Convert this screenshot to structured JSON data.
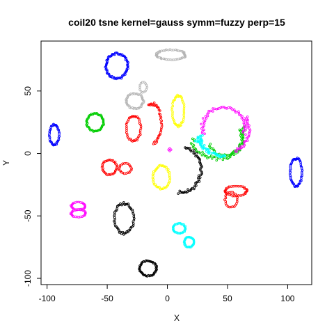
{
  "chart_data": {
    "type": "scatter",
    "title": "coil20 tsne kernel=gauss symm=fuzzy perp=15",
    "xlabel": "X",
    "ylabel": "Y",
    "xlim": [
      -105,
      120
    ],
    "ylim": [
      -105,
      90
    ],
    "xticks": [
      -100,
      -50,
      0,
      50,
      100
    ],
    "yticks": [
      -100,
      -50,
      0,
      50
    ],
    "grid": false,
    "legend": "none",
    "marker": "open-circle",
    "series": [
      {
        "color": "#0000ff",
        "clusters": [
          {
            "shape": "ellipse",
            "cx": -42,
            "cy": 70,
            "rx": 9,
            "ry": 10,
            "n": 70
          },
          {
            "shape": "ellipse",
            "cx": -94,
            "cy": 15,
            "rx": 4,
            "ry": 8,
            "n": 40
          },
          {
            "shape": "ellipse",
            "cx": 107,
            "cy": -15,
            "rx": 5,
            "ry": 11,
            "n": 50
          }
        ]
      },
      {
        "color": "#b4b4b4",
        "clusters": [
          {
            "shape": "ellipse",
            "cx": 3,
            "cy": 79,
            "rx": 12,
            "ry": 4,
            "n": 50
          },
          {
            "shape": "ellipse",
            "cx": -27,
            "cy": 42,
            "rx": 7,
            "ry": 6,
            "n": 40
          },
          {
            "shape": "ellipse",
            "cx": -20,
            "cy": 53,
            "rx": 3,
            "ry": 4,
            "n": 14
          }
        ]
      },
      {
        "color": "#00cd00",
        "clusters": [
          {
            "shape": "ellipse",
            "cx": -60,
            "cy": 25,
            "rx": 7,
            "ry": 7,
            "n": 50
          },
          {
            "shape": "arc",
            "cx": 42,
            "cy": 15,
            "rx": 22,
            "ry": 19,
            "a0": -170,
            "a1": 20,
            "n": 60
          },
          {
            "shape": "arc",
            "cx": 48,
            "cy": 12,
            "rx": 14,
            "ry": 14,
            "a0": -160,
            "a1": 30,
            "n": 40
          }
        ]
      },
      {
        "color": "#ff0000",
        "clusters": [
          {
            "shape": "ellipse",
            "cx": -28,
            "cy": 20,
            "rx": 6,
            "ry": 10,
            "n": 40
          },
          {
            "shape": "arc",
            "cx": -13,
            "cy": 24,
            "rx": 8,
            "ry": 16,
            "a0": -80,
            "a1": 110,
            "n": 40
          },
          {
            "shape": "ellipse",
            "cx": -48,
            "cy": -11,
            "rx": 6,
            "ry": 6,
            "n": 34
          },
          {
            "shape": "ellipse",
            "cx": -35,
            "cy": -12,
            "rx": 5,
            "ry": 4,
            "n": 22
          },
          {
            "shape": "ellipse",
            "cx": 57,
            "cy": -30,
            "rx": 9,
            "ry": 4,
            "n": 34
          },
          {
            "shape": "ellipse",
            "cx": 53,
            "cy": -37,
            "rx": 5,
            "ry": 6,
            "n": 24
          }
        ]
      },
      {
        "color": "#ffff00",
        "clusters": [
          {
            "shape": "ellipse",
            "cx": 9,
            "cy": 34,
            "rx": 5,
            "ry": 12,
            "n": 45
          },
          {
            "shape": "ellipse",
            "cx": -5,
            "cy": -19,
            "rx": 7,
            "ry": 9,
            "n": 45
          }
        ]
      },
      {
        "color": "#ff00ff",
        "clusters": [
          {
            "shape": "arc",
            "cx": 47,
            "cy": 21,
            "rx": 18,
            "ry": 16,
            "a0": -20,
            "a1": 200,
            "n": 55
          },
          {
            "shape": "arc",
            "cx": 54,
            "cy": 20,
            "rx": 14,
            "ry": 18,
            "a0": -80,
            "a1": 30,
            "n": 30
          },
          {
            "shape": "ellipse",
            "cx": -74,
            "cy": -42,
            "rx": 6,
            "ry": 3,
            "n": 25
          },
          {
            "shape": "ellipse",
            "cx": -74,
            "cy": -48,
            "rx": 6,
            "ry": 3,
            "n": 25
          },
          {
            "shape": "ellipse",
            "cx": 2,
            "cy": 3,
            "rx": 1,
            "ry": 1,
            "n": 4
          }
        ]
      },
      {
        "color": "#00ffff",
        "clusters": [
          {
            "shape": "arc",
            "cx": 52,
            "cy": 12,
            "rx": 25,
            "ry": 15,
            "a0": 170,
            "a1": 260,
            "n": 50
          },
          {
            "shape": "ellipse",
            "cx": 10,
            "cy": -60,
            "rx": 5,
            "ry": 4,
            "n": 30
          },
          {
            "shape": "ellipse",
            "cx": 18,
            "cy": -71,
            "rx": 4,
            "ry": 4,
            "n": 28
          },
          {
            "shape": "ellipse",
            "cx": 26,
            "cy": 10,
            "rx": 3,
            "ry": 1,
            "n": 6
          }
        ]
      },
      {
        "color": "#000000",
        "clusters": [
          {
            "shape": "arc",
            "cx": 12,
            "cy": -13,
            "rx": 16,
            "ry": 18,
            "a0": -100,
            "a1": 80,
            "n": 55
          },
          {
            "shape": "ellipse",
            "cx": -36,
            "cy": -52,
            "rx": 8,
            "ry": 12,
            "n": 55
          },
          {
            "shape": "ellipse",
            "cx": -16,
            "cy": -92,
            "rx": 7,
            "ry": 6,
            "n": 45
          }
        ]
      }
    ]
  }
}
